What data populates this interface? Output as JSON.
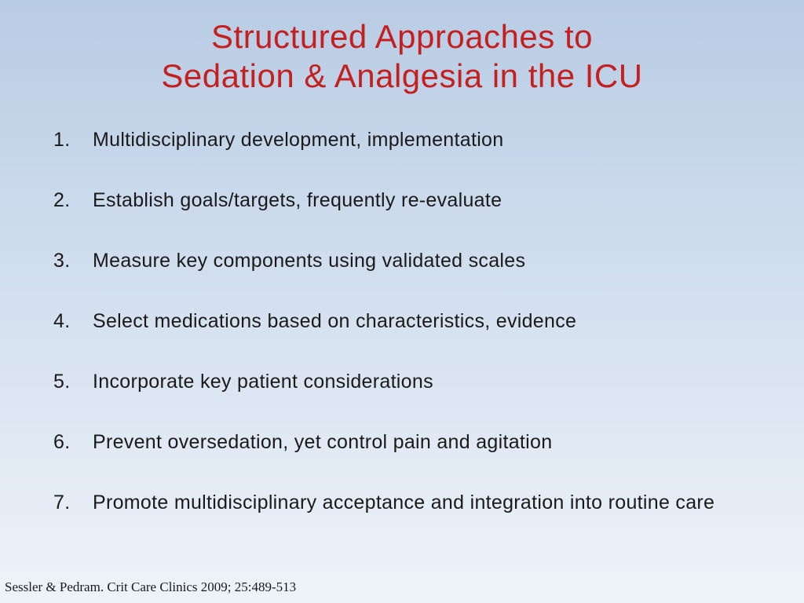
{
  "slide": {
    "title_line1": "Structured Approaches to",
    "title_line2": "Sedation & Analgesia in the ICU",
    "title_color": "#c42020",
    "title_fontsize": 42,
    "background_gradient_top": "#b8cce4",
    "background_gradient_mid": "#d4e0ef",
    "background_gradient_bottom": "#eef3f9",
    "body_text_color": "#1a1a1a",
    "body_fontsize": 25,
    "list_items": [
      "Multidisciplinary development, implementation",
      "Establish goals/targets, frequently re-evaluate",
      "Measure key components using validated scales",
      "Select medications based on characteristics, evidence",
      "Incorporate key patient considerations",
      "Prevent oversedation, yet control pain and agitation",
      "Promote multidisciplinary acceptance and integration into routine care"
    ],
    "citation": "Sessler & Pedram. Crit Care Clinics 2009; 25:489-513",
    "citation_fontsize": 17
  }
}
